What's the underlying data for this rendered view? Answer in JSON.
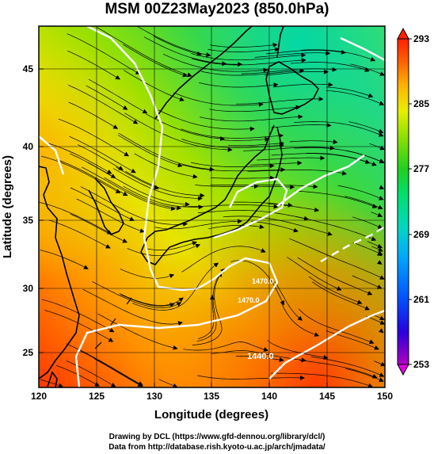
{
  "title": "MSM 00Z23May2023 (850.0hPa)",
  "xlabel": "Longitude (degrees)",
  "ylabel": "Latitude  (degrees)",
  "x_ticks": [
    "120",
    "125",
    "130",
    "135",
    "140",
    "145",
    "150"
  ],
  "y_ticks": [
    "25",
    "30",
    "35",
    "40",
    "45"
  ],
  "colorbar": {
    "ticks": [
      "293",
      "285",
      "277",
      "269",
      "261",
      "253"
    ],
    "min": 253,
    "max": 293,
    "colors": [
      "#b000c0",
      "#2a00e0",
      "#0050ff",
      "#00a8ff",
      "#00d8c0",
      "#00e070",
      "#20d020",
      "#90e000",
      "#e8f000",
      "#ffb000",
      "#ff6000",
      "#ff2000"
    ]
  },
  "contour_labels": [
    "1440.0",
    "1470.0",
    "1470.0"
  ],
  "credits": {
    "line1": "Drawing by DCL (https://www.gfd-dennou.org/library/dcl/)",
    "line2": "Data from http://database.rish.kyoto-u.ac.jp/arch/jmadata/"
  },
  "chart_data": {
    "type": "heatmap",
    "title": "MSM 00Z23May2023 (850.0hPa)",
    "xlabel": "Longitude (degrees)",
    "ylabel": "Latitude  (degrees)",
    "xlim": [
      120,
      150
    ],
    "ylim": [
      22.5,
      48
    ],
    "colorbar_range": [
      253,
      293
    ],
    "grid": true
  }
}
